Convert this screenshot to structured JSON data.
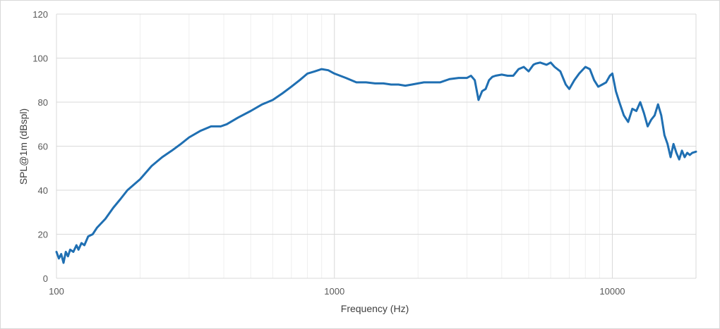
{
  "chart_data": {
    "type": "line",
    "title": "",
    "xlabel": "Frequency (Hz)",
    "ylabel": "SPL@1m (dBspl)",
    "x_scale": "log",
    "xlim": [
      100,
      20000
    ],
    "ylim": [
      0,
      120
    ],
    "x_ticks": [
      100,
      1000,
      10000
    ],
    "x_tick_labels": [
      "100",
      "1000",
      "10000"
    ],
    "y_ticks": [
      0,
      20,
      40,
      60,
      80,
      100,
      120
    ],
    "y_tick_labels": [
      "0",
      "20",
      "40",
      "60",
      "80",
      "100",
      "120"
    ],
    "grid": true,
    "legend": "none",
    "series_color": "#1f6fb2",
    "series": [
      {
        "x": [
          100,
          102,
          104,
          106,
          108,
          110,
          112,
          115,
          118,
          120,
          123,
          126,
          130,
          135,
          140,
          150,
          160,
          170,
          180,
          200,
          220,
          240,
          260,
          280,
          300,
          330,
          360,
          390,
          410,
          450,
          500,
          550,
          600,
          650,
          700,
          750,
          800,
          850,
          900,
          950,
          1000,
          1100,
          1200,
          1300,
          1400,
          1500,
          1600,
          1700,
          1800,
          1900,
          2000,
          2100,
          2200,
          2400,
          2600,
          2800,
          3000,
          3100,
          3200,
          3300,
          3400,
          3500,
          3600,
          3700,
          3800,
          4000,
          4200,
          4400,
          4600,
          4800,
          5000,
          5200,
          5300,
          5500,
          5800,
          6000,
          6200,
          6500,
          6800,
          7000,
          7300,
          7600,
          8000,
          8300,
          8600,
          8900,
          9200,
          9500,
          9800,
          10000,
          10300,
          10600,
          11000,
          11400,
          11800,
          12200,
          12600,
          13000,
          13400,
          13800,
          14200,
          14600,
          15000,
          15400,
          15800,
          16200,
          16600,
          17000,
          17400,
          17800,
          18200,
          18600,
          19000,
          19400,
          20000
        ],
        "y": [
          12,
          9,
          11,
          7,
          12,
          10,
          13,
          12,
          15,
          13,
          16,
          15,
          19,
          20,
          23,
          27,
          32,
          36,
          40,
          45,
          51,
          55,
          58,
          61,
          64,
          67,
          69,
          69,
          70,
          73,
          76,
          79,
          81,
          84,
          87,
          90,
          93,
          94,
          95,
          94.5,
          93,
          91,
          89,
          89,
          88.5,
          88.5,
          88,
          88,
          87.5,
          88,
          88.5,
          89,
          89,
          89,
          90.5,
          91,
          91,
          92,
          90,
          81,
          85,
          86,
          90,
          91.5,
          92,
          92.5,
          92,
          92,
          95,
          96,
          94,
          97,
          97.5,
          98,
          97,
          98,
          96,
          94,
          88,
          86,
          90,
          93,
          96,
          95,
          90,
          87,
          88,
          89,
          92,
          93,
          85,
          80,
          74,
          71,
          77,
          76,
          80,
          75,
          69,
          72,
          74,
          79,
          74,
          65,
          61,
          55,
          61,
          57,
          54,
          58,
          55,
          57,
          56,
          57,
          57.5
        ]
      }
    ]
  }
}
